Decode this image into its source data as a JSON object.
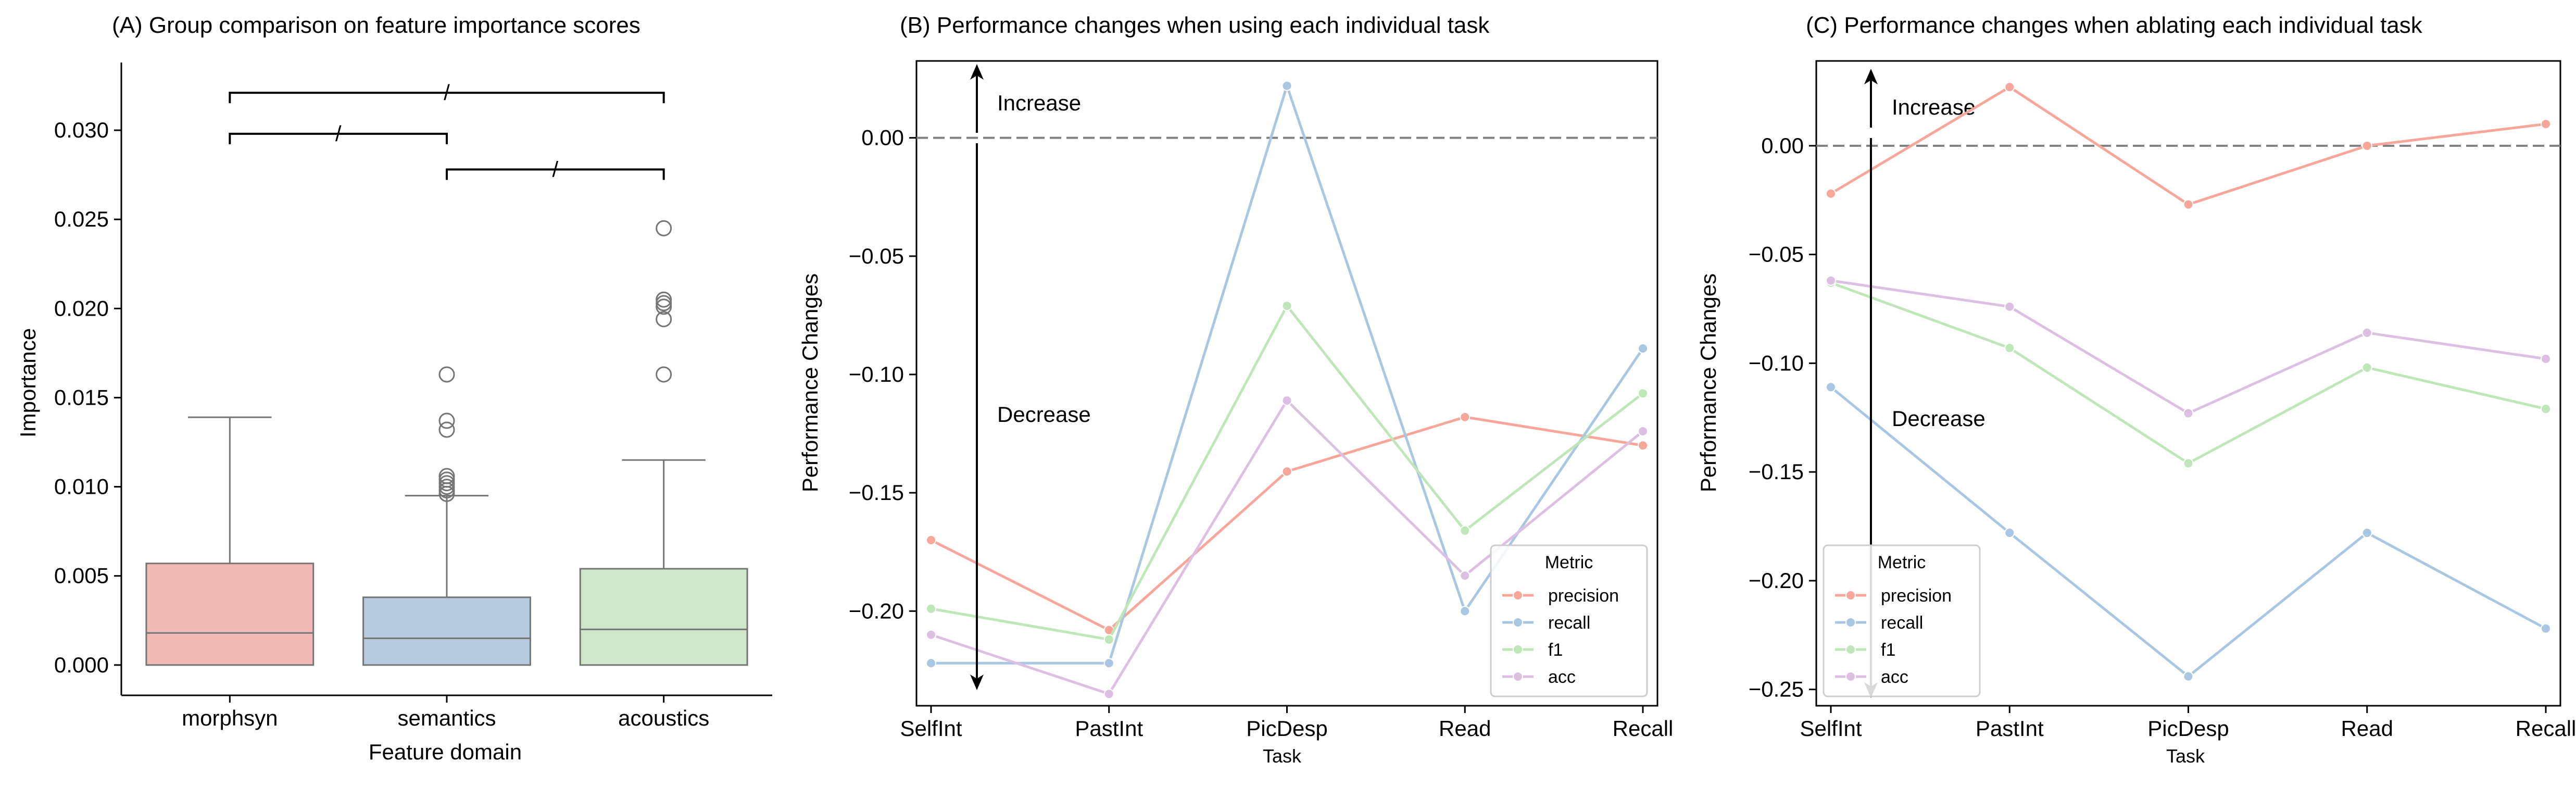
{
  "chart_data": [
    {
      "type": "box",
      "title": "(A) Group comparison on feature importance scores",
      "xlabel": "Feature domain",
      "ylabel": "Importance",
      "categories": [
        "morphsyn",
        "semantics",
        "acoustics"
      ],
      "colors": [
        "#f2b9b6",
        "#b7cade",
        "#cfe6cb"
      ],
      "ylim": [
        -0.0017,
        0.0338
      ],
      "yticks": [
        0.0,
        0.005,
        0.01,
        0.015,
        0.02,
        0.025,
        0.03
      ],
      "ytick_labels": [
        "0.000",
        "0.005",
        "0.010",
        "0.015",
        "0.020",
        "0.025",
        "0.030"
      ],
      "boxes": [
        {
          "q1": 0.0,
          "median": 0.0018,
          "q3": 0.0057,
          "whislo": 0.0,
          "whishi": 0.0139,
          "fliers": []
        },
        {
          "q1": 0.0,
          "median": 0.0015,
          "q3": 0.0038,
          "whislo": 0.0,
          "whishi": 0.0095,
          "fliers": [
            0.0096,
            0.0098,
            0.01,
            0.0102,
            0.0104,
            0.0106,
            0.0132,
            0.0137,
            0.0163
          ]
        },
        {
          "q1": 0.0,
          "median": 0.002,
          "q3": 0.0054,
          "whislo": 0.0,
          "whishi": 0.0115,
          "fliers": [
            0.0163,
            0.0194,
            0.0201,
            0.0203,
            0.0205,
            0.0245
          ]
        }
      ],
      "comparisons": [
        {
          "from": 0,
          "to": 1,
          "y": 0.0298,
          "label": "/"
        },
        {
          "from": 1,
          "to": 2,
          "y": 0.0278,
          "label": "/"
        },
        {
          "from": 0,
          "to": 2,
          "y": 0.0321,
          "label": "/"
        }
      ]
    },
    {
      "type": "line",
      "title": "(B) Performance changes when using each individual task",
      "xlabel": "Task",
      "ylabel": "Performance Changes",
      "categories": [
        "SelfInt",
        "PastInt",
        "PicDesp",
        "Read",
        "Recall"
      ],
      "ylim": [
        -0.24,
        0.0325
      ],
      "yticks": [
        0.0,
        -0.05,
        -0.1,
        -0.15,
        -0.2
      ],
      "ytick_labels": [
        "0.00",
        "−0.05",
        "−0.10",
        "−0.15",
        "−0.20"
      ],
      "series": [
        {
          "name": "precision",
          "color": "#f8a59a",
          "values": [
            -0.17,
            -0.208,
            -0.141,
            -0.118,
            -0.13
          ]
        },
        {
          "name": "recall",
          "color": "#a9c6e2",
          "values": [
            -0.222,
            -0.222,
            0.022,
            -0.2,
            -0.089
          ]
        },
        {
          "name": "f1",
          "color": "#bfe6b9",
          "values": [
            -0.199,
            -0.212,
            -0.071,
            -0.166,
            -0.108
          ]
        },
        {
          "name": "acc",
          "color": "#dcc0e2",
          "values": [
            -0.21,
            -0.235,
            -0.111,
            -0.185,
            -0.124
          ]
        }
      ],
      "annotations": {
        "increase": "Increase",
        "decrease": "Decrease"
      },
      "legend": {
        "title": "Metric",
        "placement": "lower-right"
      }
    },
    {
      "type": "line",
      "title": "(C) Performance changes when ablating each individual task",
      "xlabel": "Task",
      "ylabel": "Performance Changes",
      "categories": [
        "SelfInt",
        "PastInt",
        "PicDesp",
        "Read",
        "Recall"
      ],
      "ylim": [
        -0.2575,
        0.039
      ],
      "yticks": [
        0.0,
        -0.05,
        -0.1,
        -0.15,
        -0.2,
        -0.25
      ],
      "ytick_labels": [
        "0.00",
        "−0.05",
        "−0.10",
        "−0.15",
        "−0.20",
        "−0.25"
      ],
      "series": [
        {
          "name": "precision",
          "color": "#f8a59a",
          "values": [
            -0.022,
            0.027,
            -0.027,
            0.0,
            0.01
          ]
        },
        {
          "name": "recall",
          "color": "#a9c6e2",
          "values": [
            -0.111,
            -0.178,
            -0.244,
            -0.178,
            -0.222
          ]
        },
        {
          "name": "f1",
          "color": "#bfe6b9",
          "values": [
            -0.063,
            -0.093,
            -0.146,
            -0.102,
            -0.121
          ]
        },
        {
          "name": "acc",
          "color": "#dcc0e2",
          "values": [
            -0.062,
            -0.074,
            -0.123,
            -0.086,
            -0.098
          ]
        }
      ],
      "annotations": {
        "increase": "Increase",
        "decrease": "Decrease"
      },
      "legend": {
        "title": "Metric",
        "placement": "lower-left"
      }
    }
  ]
}
